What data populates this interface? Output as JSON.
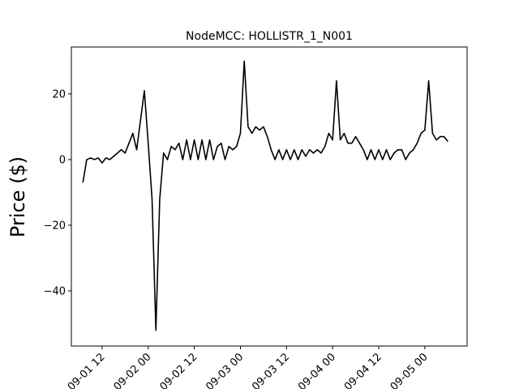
{
  "chart_data": {
    "type": "line",
    "title": "NodeMCC: HOLLISTR_1_N001",
    "y_label": "Price ($)",
    "x": [
      "09-01 07",
      "09-01 08",
      "09-01 09",
      "09-01 10",
      "09-01 11",
      "09-01 12",
      "09-01 13",
      "09-01 14",
      "09-01 15",
      "09-01 16",
      "09-01 17",
      "09-01 18",
      "09-01 19",
      "09-01 20",
      "09-01 21",
      "09-01 22",
      "09-01 23",
      "09-02 00",
      "09-02 01",
      "09-02 02",
      "09-02 03",
      "09-02 04",
      "09-02 05",
      "09-02 06",
      "09-02 07",
      "09-02 08",
      "09-02 09",
      "09-02 10",
      "09-02 11",
      "09-02 12",
      "09-02 13",
      "09-02 14",
      "09-02 15",
      "09-02 16",
      "09-02 17",
      "09-02 18",
      "09-02 19",
      "09-02 20",
      "09-02 21",
      "09-02 22",
      "09-02 23",
      "09-03 00",
      "09-03 01",
      "09-03 02",
      "09-03 03",
      "09-03 04",
      "09-03 05",
      "09-03 06",
      "09-03 07",
      "09-03 08",
      "09-03 09",
      "09-03 10",
      "09-03 11",
      "09-03 12",
      "09-03 13",
      "09-03 14",
      "09-03 15",
      "09-03 16",
      "09-03 17",
      "09-03 18",
      "09-03 19",
      "09-03 20",
      "09-03 21",
      "09-03 22",
      "09-03 23",
      "09-04 00",
      "09-04 01",
      "09-04 02",
      "09-04 03",
      "09-04 04",
      "09-04 05",
      "09-04 06",
      "09-04 07",
      "09-04 08",
      "09-04 09",
      "09-04 10",
      "09-04 11",
      "09-04 12",
      "09-04 13",
      "09-04 14",
      "09-04 15",
      "09-04 16",
      "09-04 17",
      "09-04 18",
      "09-04 19",
      "09-04 20",
      "09-04 21",
      "09-04 22",
      "09-04 23",
      "09-05 00",
      "09-05 01",
      "09-05 02",
      "09-05 03",
      "09-05 04",
      "09-05 05",
      "09-05 06"
    ],
    "values": [
      -7,
      0,
      0.5,
      0,
      0.5,
      -1,
      0.5,
      0,
      1,
      2,
      3,
      2,
      5,
      8,
      3,
      12,
      21,
      5,
      -12,
      -52,
      -12,
      2,
      0,
      4,
      3,
      5,
      0,
      6,
      0,
      6,
      0,
      6,
      0,
      6,
      0,
      4,
      5,
      0,
      4,
      3,
      4,
      8,
      30,
      10,
      8,
      10,
      9,
      10,
      7,
      3,
      0,
      3,
      0,
      3,
      0,
      3,
      0,
      3,
      1,
      3,
      2,
      3,
      2,
      4,
      8,
      6,
      24,
      6,
      8,
      5,
      5,
      7,
      5,
      3,
      0,
      3,
      0,
      3,
      0,
      3,
      0,
      2,
      3,
      3,
      0,
      2,
      3,
      5,
      8,
      9,
      24,
      8,
      6,
      7,
      7,
      5.5
    ],
    "color": "#000000",
    "xlim": [
      "09-01 04",
      "09-05 11"
    ],
    "xticks": [
      "09-01 12",
      "09-02 00",
      "09-02 12",
      "09-03 00",
      "09-03 12",
      "09-04 00",
      "09-04 12",
      "09-05 00"
    ],
    "ylim": [
      -56.8,
      34.3
    ],
    "yticks": [
      {
        "value": -40,
        "label": "−40"
      },
      {
        "value": -20,
        "label": "−20"
      },
      0,
      20
    ]
  }
}
